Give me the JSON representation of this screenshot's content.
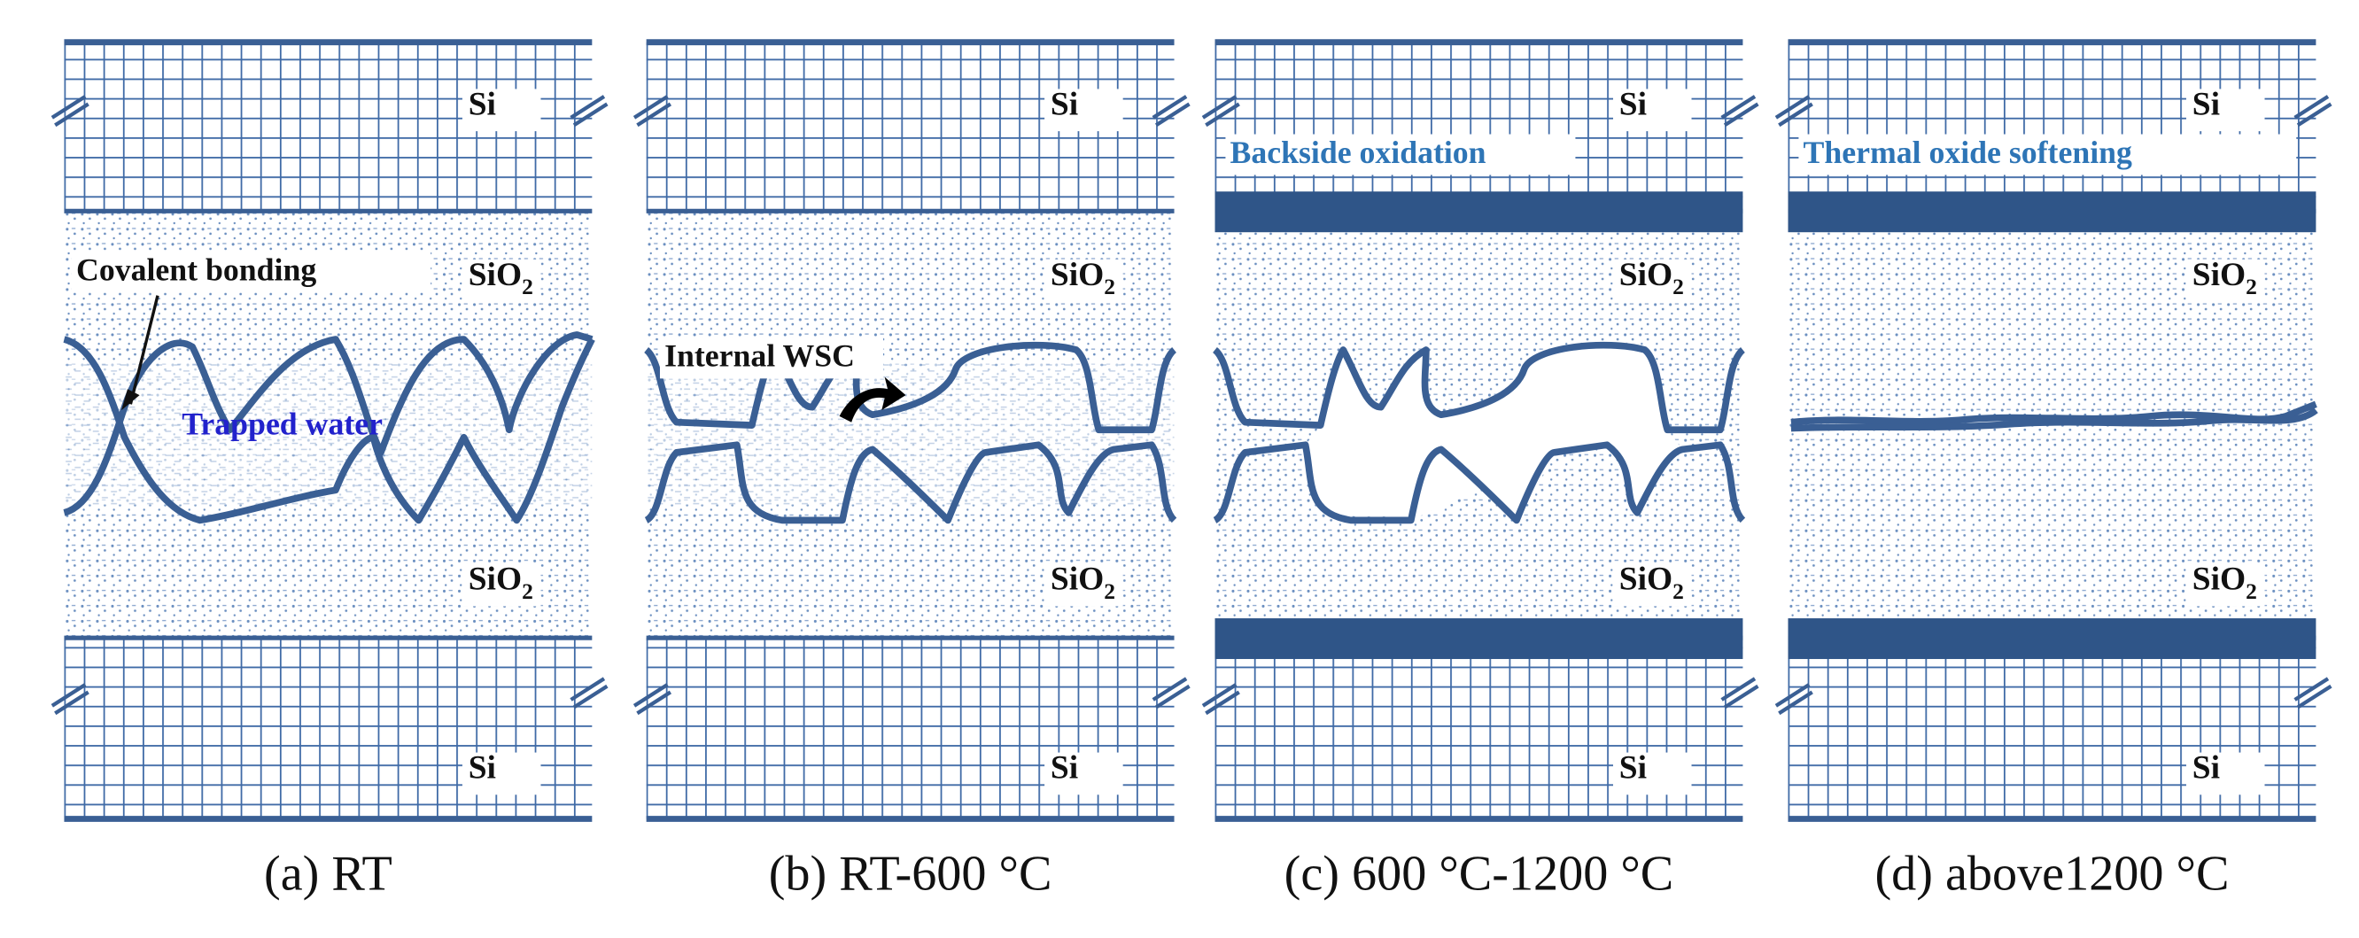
{
  "panels": [
    {
      "caption": "(a) RT",
      "si_top": "Si",
      "sio2_upper": {
        "base": "SiO",
        "sub": "2"
      },
      "sio2_lower": {
        "base": "SiO",
        "sub": "2"
      },
      "si_bottom": "Si",
      "annotations": [
        "Covalent bonding",
        "Trapped water"
      ]
    },
    {
      "caption": "(b) RT-600 °C",
      "si_top": "Si",
      "sio2_upper": {
        "base": "SiO",
        "sub": "2"
      },
      "sio2_lower": {
        "base": "SiO",
        "sub": "2"
      },
      "si_bottom": "Si",
      "annotations": [
        "Internal WSC"
      ]
    },
    {
      "caption": "(c) 600 °C-1200 °C",
      "si_top": "Si",
      "sio2_upper": {
        "base": "SiO",
        "sub": "2"
      },
      "sio2_lower": {
        "base": "SiO",
        "sub": "2"
      },
      "si_bottom": "Si",
      "annotations": [
        "Backside oxidation"
      ]
    },
    {
      "caption": "(d) above1200 °C",
      "si_top": "Si",
      "sio2_upper": {
        "base": "SiO",
        "sub": "2"
      },
      "sio2_lower": {
        "base": "SiO",
        "sub": "2"
      },
      "si_bottom": "Si",
      "annotations": [
        "Thermal oxide softening"
      ]
    }
  ]
}
